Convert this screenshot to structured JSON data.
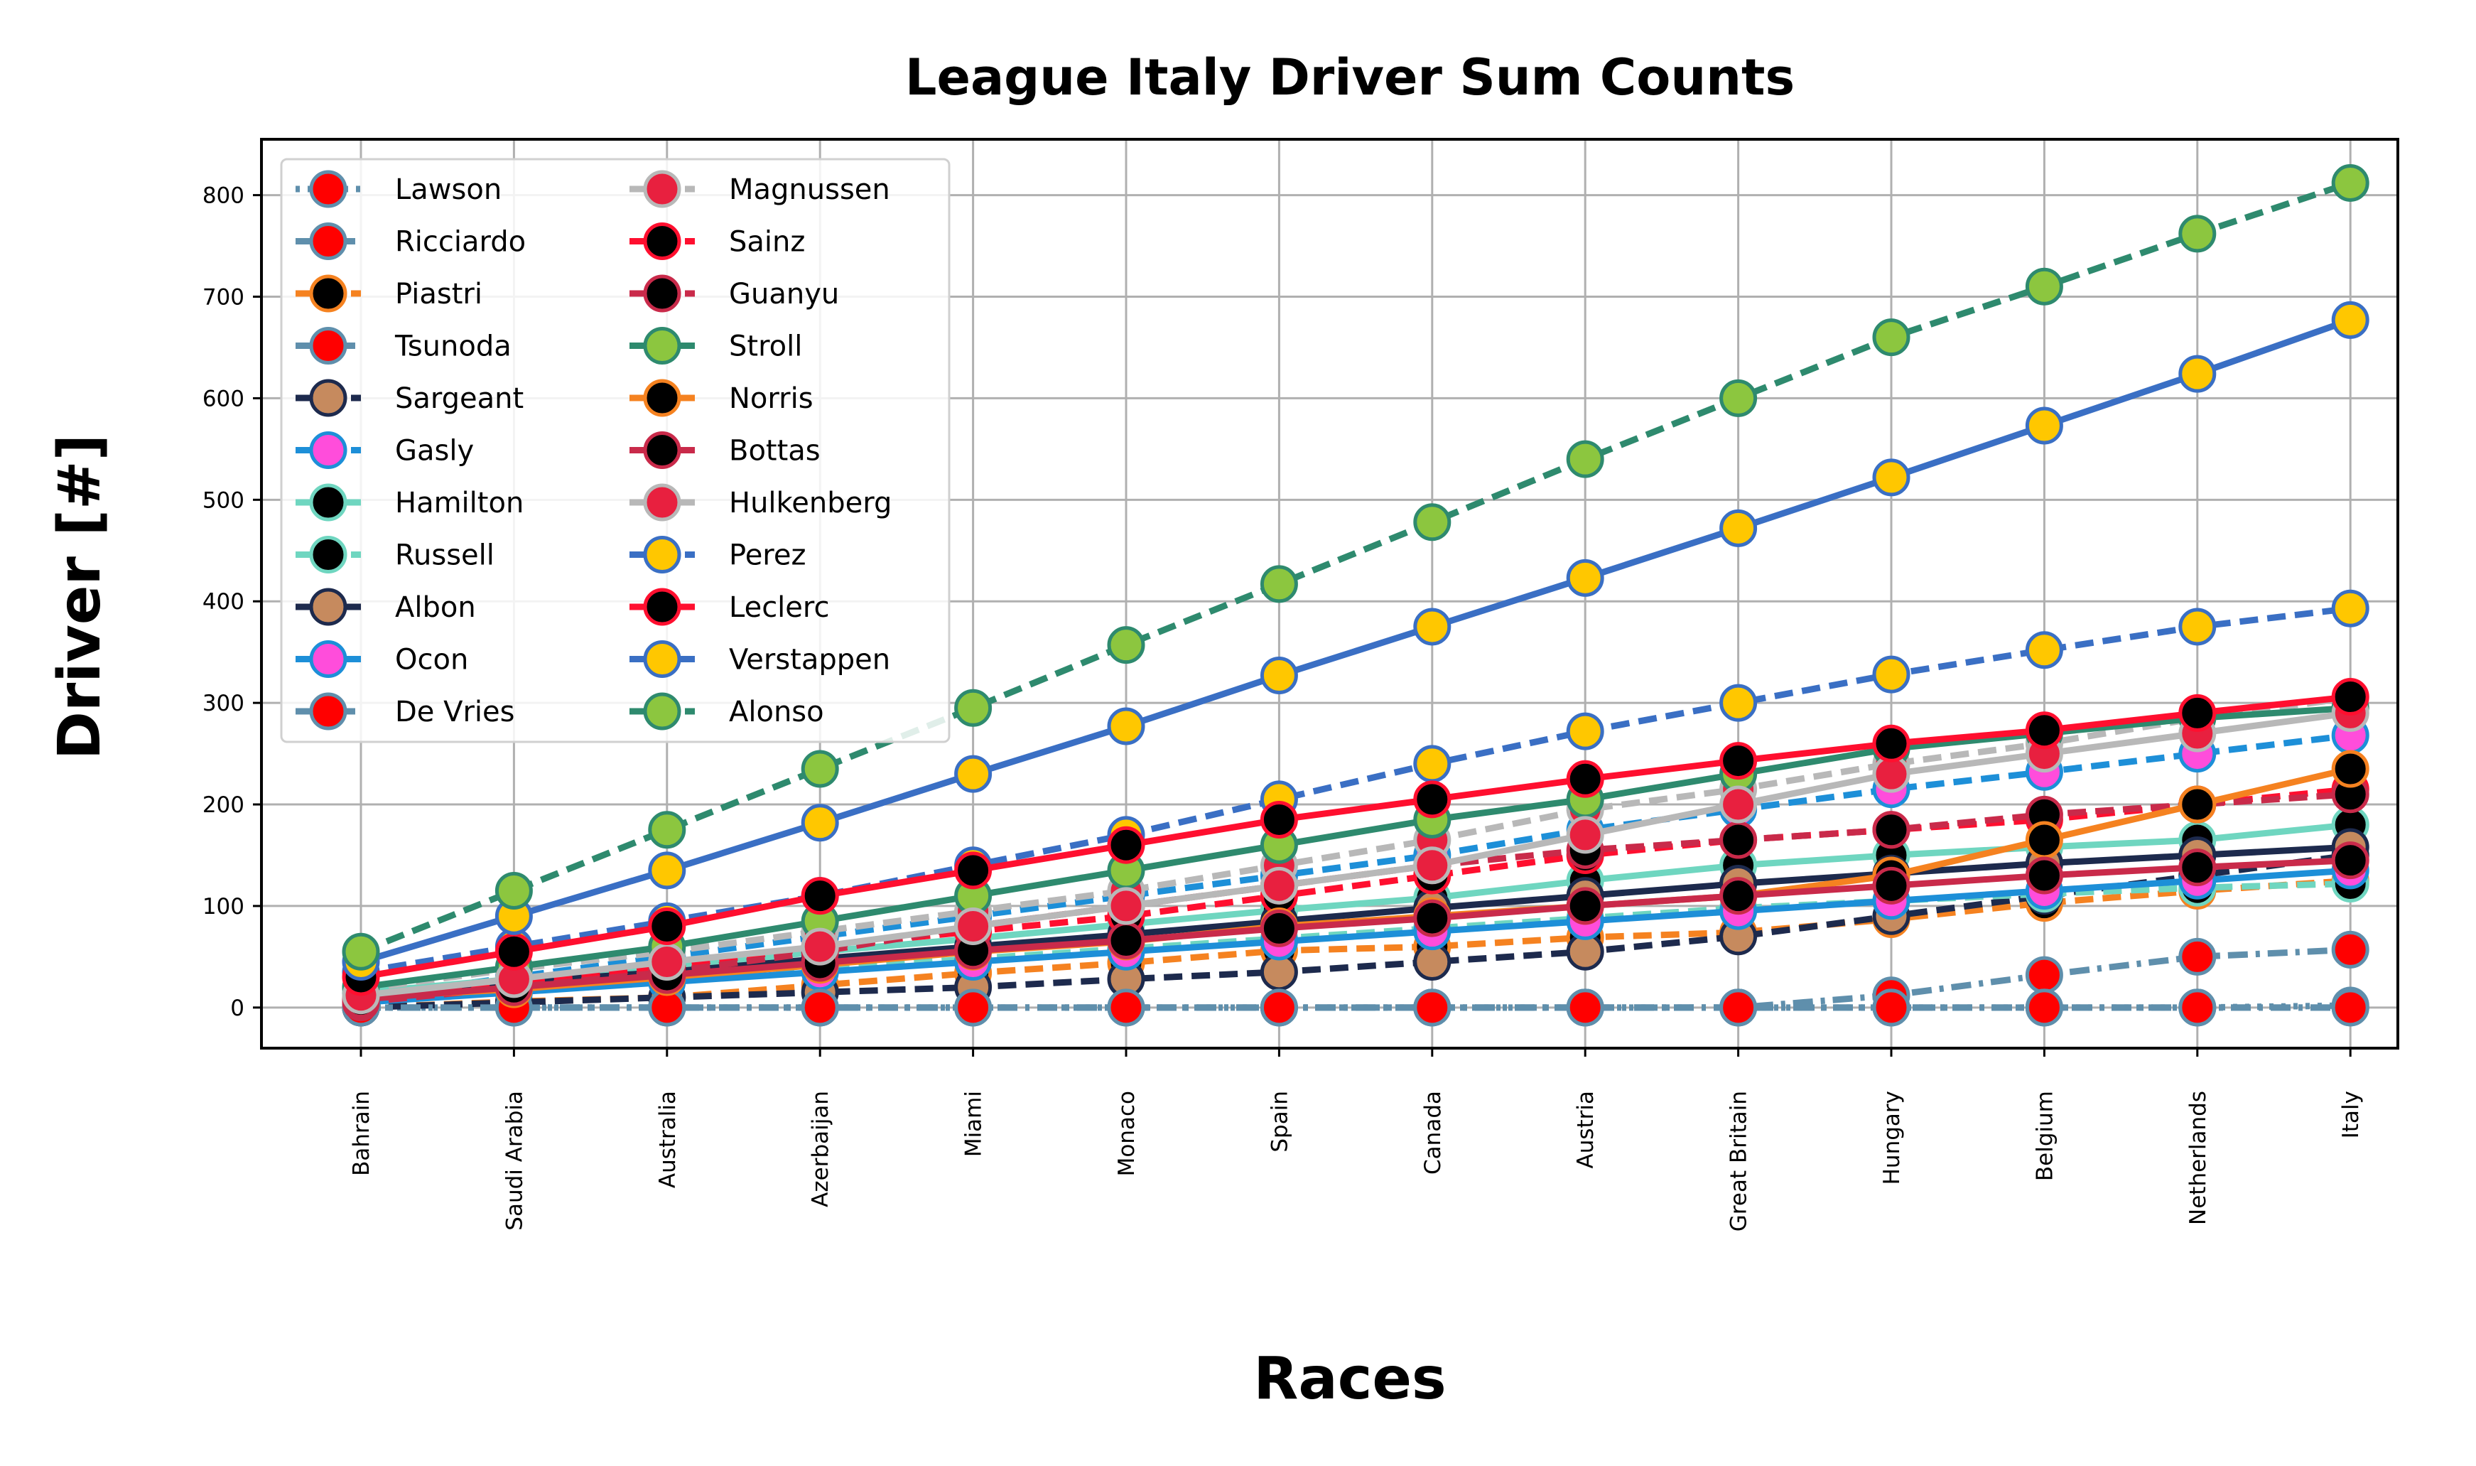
{
  "chart_data": {
    "type": "line",
    "title": "League Italy Driver Sum Counts",
    "xlabel": "Races",
    "ylabel": "Driver [#]",
    "categories": [
      "Bahrain",
      "Saudi Arabia",
      "Australia",
      "Azerbaijan",
      "Miami",
      "Monaco",
      "Spain",
      "Canada",
      "Austria",
      "Great Britain",
      "Hungary",
      "Belgium",
      "Netherlands",
      "Italy"
    ],
    "ylim": [
      -40,
      855
    ],
    "yticks": [
      0,
      100,
      200,
      300,
      400,
      500,
      600,
      700,
      800
    ],
    "grid": true,
    "legend_position": "top-left",
    "series": [
      {
        "name": "Lawson",
        "line_color": "#5f8fac",
        "marker_face": "#ff0000",
        "marker_edge": "#5f8fac",
        "dash": "dotted",
        "values": [
          0,
          0,
          0,
          0,
          0,
          0,
          0,
          0,
          0,
          0,
          0,
          0,
          0,
          2
        ]
      },
      {
        "name": "Ricciardo",
        "line_color": "#5f8fac",
        "marker_face": "#ff0000",
        "marker_edge": "#5f8fac",
        "dash": "dashdot",
        "values": [
          0,
          0,
          0,
          0,
          0,
          0,
          0,
          0,
          0,
          0,
          12,
          32,
          50,
          57
        ]
      },
      {
        "name": "Piastri",
        "line_color": "#f58220",
        "marker_face": "#000000",
        "marker_edge": "#f58220",
        "dash": "dashed",
        "values": [
          0,
          6,
          10,
          22,
          34,
          44,
          56,
          60,
          69,
          74,
          87,
          103,
          115,
          125
        ]
      },
      {
        "name": "Tsunoda",
        "line_color": "#5f8fac",
        "marker_face": "#ff0000",
        "marker_edge": "#5f8fac",
        "dash": "dashdot",
        "values": [
          0,
          0,
          0,
          0,
          0,
          0,
          0,
          0,
          0,
          0,
          0,
          0,
          0,
          0
        ]
      },
      {
        "name": "Sargeant",
        "line_color": "#1d2a4d",
        "marker_face": "#c68a5e",
        "marker_edge": "#1d2a4d",
        "dash": "dashed",
        "values": [
          0,
          5,
          10,
          15,
          20,
          28,
          35,
          45,
          55,
          70,
          90,
          110,
          130,
          150
        ]
      },
      {
        "name": "Gasly",
        "line_color": "#1d8fd8",
        "marker_face": "#ff4ddb",
        "marker_edge": "#1d8fd8",
        "dash": "dashed",
        "values": [
          10,
          30,
          50,
          70,
          90,
          110,
          130,
          150,
          175,
          195,
          215,
          232,
          250,
          268
        ]
      },
      {
        "name": "Hamilton",
        "line_color": "#6fd6c0",
        "marker_face": "#000000",
        "marker_edge": "#6fd6c0",
        "dash": "solid",
        "values": [
          15,
          28,
          40,
          55,
          68,
          82,
          96,
          108,
          125,
          140,
          150,
          158,
          165,
          180
        ]
      },
      {
        "name": "Russell",
        "line_color": "#6fd6c0",
        "marker_face": "#000000",
        "marker_edge": "#6fd6c0",
        "dash": "dashed",
        "values": [
          10,
          18,
          28,
          38,
          48,
          58,
          68,
          78,
          88,
          98,
          105,
          112,
          118,
          122
        ]
      },
      {
        "name": "Albon",
        "line_color": "#1d2a4d",
        "marker_face": "#c68a5e",
        "marker_edge": "#1d2a4d",
        "dash": "solid",
        "values": [
          12,
          25,
          35,
          48,
          60,
          72,
          85,
          98,
          110,
          122,
          132,
          142,
          150,
          158
        ]
      },
      {
        "name": "Ocon",
        "line_color": "#1d8fd8",
        "marker_face": "#ff4ddb",
        "marker_edge": "#1d8fd8",
        "dash": "solid",
        "values": [
          5,
          15,
          25,
          35,
          45,
          55,
          65,
          75,
          85,
          95,
          105,
          115,
          125,
          135
        ]
      },
      {
        "name": "De Vries",
        "line_color": "#5f8fac",
        "marker_face": "#ff0000",
        "marker_edge": "#5f8fac",
        "dash": "dashdot",
        "values": [
          0,
          0,
          0,
          0,
          0,
          0,
          0,
          0,
          0,
          0,
          0,
          0,
          0,
          0
        ]
      },
      {
        "name": "Magnussen",
        "line_color": "#b8b8b8",
        "marker_face": "#e8203f",
        "marker_edge": "#b8b8b8",
        "dash": "dashed",
        "values": [
          18,
          38,
          55,
          75,
          95,
          115,
          140,
          165,
          195,
          215,
          240,
          260,
          285,
          305
        ]
      },
      {
        "name": "Sainz",
        "line_color": "#ff0f2f",
        "marker_face": "#000000",
        "marker_edge": "#ff0f2f",
        "dash": "dashed",
        "values": [
          10,
          25,
          40,
          60,
          75,
          90,
          110,
          130,
          150,
          165,
          175,
          185,
          200,
          215
        ]
      },
      {
        "name": "Guanyu",
        "line_color": "#c92a4a",
        "marker_face": "#000000",
        "marker_edge": "#c92a4a",
        "dash": "dashed",
        "values": [
          5,
          20,
          35,
          55,
          80,
          100,
          120,
          140,
          155,
          165,
          175,
          190,
          200,
          210
        ]
      },
      {
        "name": "Stroll",
        "line_color": "#2e8a6e",
        "marker_face": "#8cc63f",
        "marker_edge": "#2e8a6e",
        "dash": "solid",
        "values": [
          20,
          40,
          60,
          85,
          110,
          135,
          160,
          185,
          205,
          230,
          255,
          270,
          285,
          295
        ]
      },
      {
        "name": "Norris",
        "line_color": "#f58220",
        "marker_face": "#000000",
        "marker_edge": "#f58220",
        "dash": "solid",
        "values": [
          10,
          18,
          30,
          42,
          55,
          65,
          80,
          90,
          100,
          110,
          130,
          165,
          200,
          235
        ]
      },
      {
        "name": "Bottas",
        "line_color": "#c92a4a",
        "marker_face": "#000000",
        "marker_edge": "#c92a4a",
        "dash": "solid",
        "values": [
          8,
          20,
          32,
          44,
          56,
          66,
          78,
          88,
          100,
          110,
          120,
          130,
          138,
          145
        ]
      },
      {
        "name": "Hulkenberg",
        "line_color": "#b8b8b8",
        "marker_face": "#e8203f",
        "marker_edge": "#b8b8b8",
        "dash": "solid",
        "values": [
          12,
          28,
          45,
          60,
          80,
          100,
          120,
          140,
          170,
          200,
          230,
          250,
          270,
          290
        ]
      },
      {
        "name": "Perez",
        "line_color": "#3a6fc4",
        "marker_face": "#ffc700",
        "marker_edge": "#3a6fc4",
        "dash": "dashed",
        "values": [
          35,
          60,
          85,
          110,
          140,
          170,
          205,
          240,
          272,
          300,
          328,
          352,
          375,
          393
        ]
      },
      {
        "name": "Leclerc",
        "line_color": "#ff0f2f",
        "marker_face": "#000000",
        "marker_edge": "#ff0f2f",
        "dash": "solid",
        "values": [
          30,
          55,
          80,
          110,
          135,
          160,
          185,
          205,
          225,
          243,
          260,
          273,
          290,
          306
        ]
      },
      {
        "name": "Verstappen",
        "line_color": "#3a6fc4",
        "marker_face": "#ffc700",
        "marker_edge": "#3a6fc4",
        "dash": "solid",
        "values": [
          45,
          90,
          135,
          182,
          230,
          277,
          327,
          375,
          423,
          472,
          522,
          573,
          624,
          677
        ]
      },
      {
        "name": "Alonso",
        "line_color": "#2e8a6e",
        "marker_face": "#8cc63f",
        "marker_edge": "#2e8a6e",
        "dash": "dashed",
        "values": [
          55,
          115,
          175,
          235,
          295,
          357,
          417,
          478,
          540,
          600,
          660,
          710,
          762,
          812
        ]
      }
    ]
  }
}
